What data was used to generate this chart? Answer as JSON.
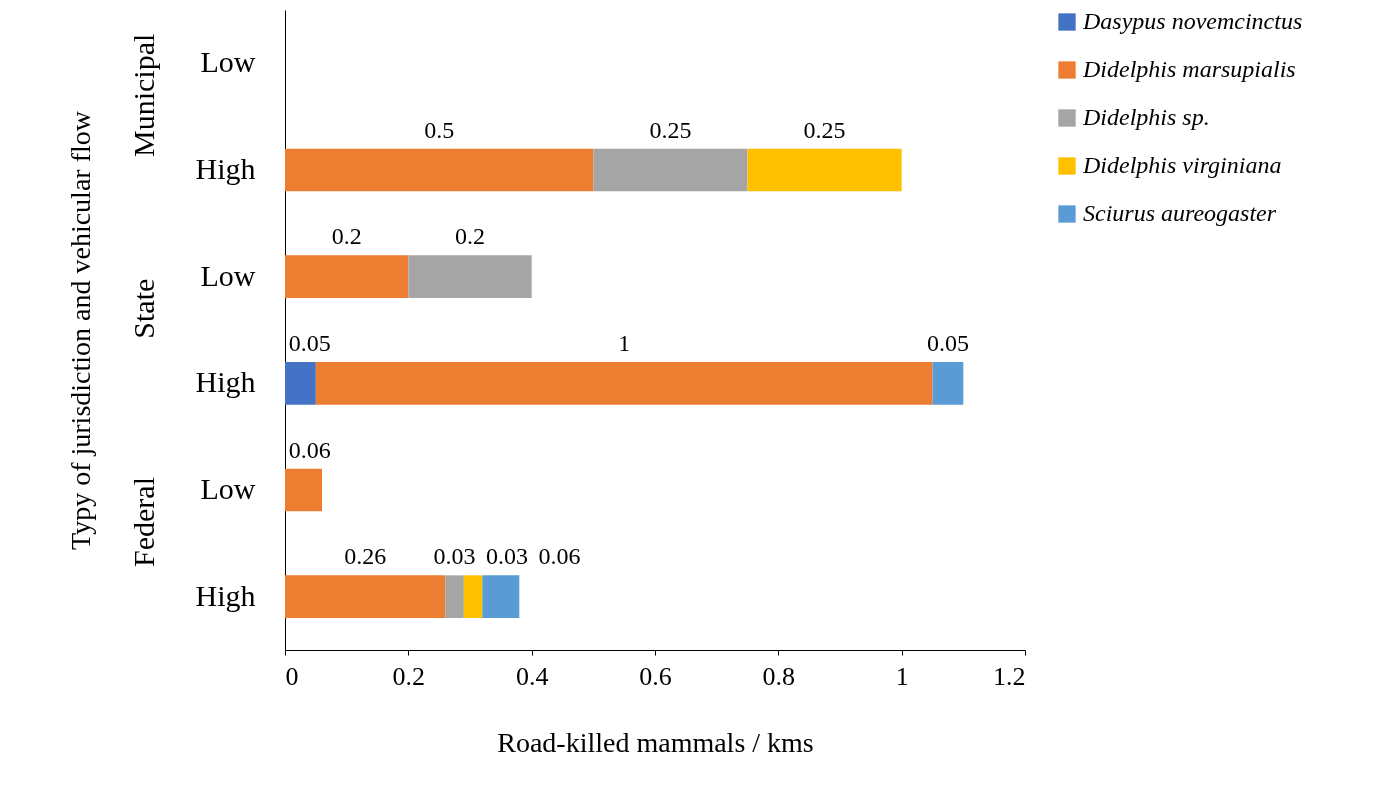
{
  "chart_data": {
    "type": "bar",
    "orientation": "horizontal",
    "stacked": true,
    "xlabel": "Road-killed mammals / kms",
    "ylabel": "Typy of jurisdiction and vehicular flow",
    "categories": [
      "Low",
      "High",
      "Low",
      "High",
      "Low",
      "High"
    ],
    "annotations": [
      "Municipal",
      "State",
      "Federal"
    ],
    "series": [
      {
        "name": "Dasypus novemcinctus",
        "color": "#4472c4",
        "values": [
          null,
          null,
          null,
          0.05,
          null,
          null
        ]
      },
      {
        "name": "Didelphis marsupialis",
        "color": "#ed7d31",
        "values": [
          null,
          0.5,
          0.2,
          1,
          0.06,
          0.26
        ]
      },
      {
        "name": "Didelphis sp.",
        "color": "#a5a5a5",
        "values": [
          null,
          0.25,
          0.2,
          null,
          null,
          0.03
        ]
      },
      {
        "name": "Didelphis virginiana",
        "color": "#ffc000",
        "values": [
          null,
          0.25,
          null,
          null,
          null,
          0.03
        ]
      },
      {
        "name": "Sciurus aureogaster",
        "color": "#5b9bd5",
        "values": [
          null,
          null,
          null,
          0.05,
          null,
          0.06
        ]
      }
    ],
    "xlim": [
      0,
      1.2
    ],
    "xticks": [
      0,
      0.2,
      0.4,
      0.6,
      0.8,
      1,
      1.2
    ],
    "grid": false,
    "legend": "right",
    "data_labels": true
  }
}
